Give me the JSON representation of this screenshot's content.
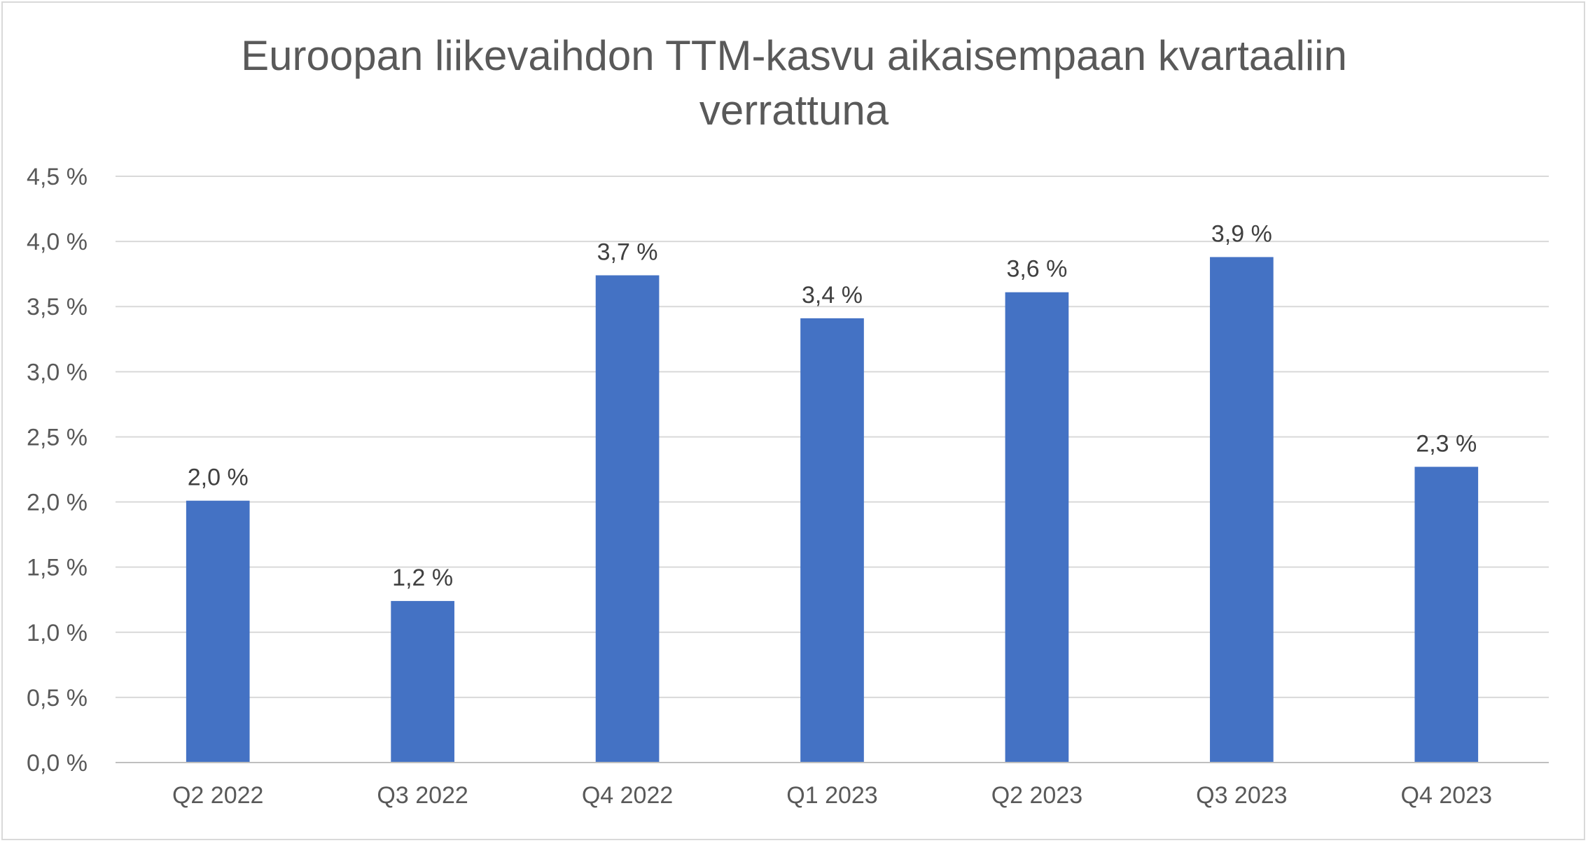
{
  "chart_data": {
    "type": "bar",
    "title_lines": [
      "Euroopan liikevaihdon TTM-kasvu aikaisempaan kvartaaliin",
      "verrattuna"
    ],
    "categories": [
      "Q2 2022",
      "Q3 2022",
      "Q4 2022",
      "Q1 2023",
      "Q2 2023",
      "Q3 2023",
      "Q4 2023"
    ],
    "values": [
      2.01,
      1.24,
      3.74,
      3.41,
      3.61,
      3.88,
      2.27
    ],
    "data_labels": [
      "2,0 %",
      "1,2 %",
      "3,7 %",
      "3,4 %",
      "3,6 %",
      "3,9 %",
      "2,3 %"
    ],
    "y_ticks": [
      0,
      0.5,
      1.0,
      1.5,
      2.0,
      2.5,
      3.0,
      3.5,
      4.0,
      4.5
    ],
    "y_tick_labels": [
      "0,0 %",
      "0,5 %",
      "1,0 %",
      "1,5 %",
      "2,0 %",
      "2,5 %",
      "3,0 %",
      "3,5 %",
      "4,0 %",
      "4,5 %"
    ],
    "ylim": [
      0,
      4.5
    ],
    "xlabel": "",
    "ylabel": "",
    "grid": true,
    "legend": "none",
    "bar_color": "#4472C4"
  }
}
